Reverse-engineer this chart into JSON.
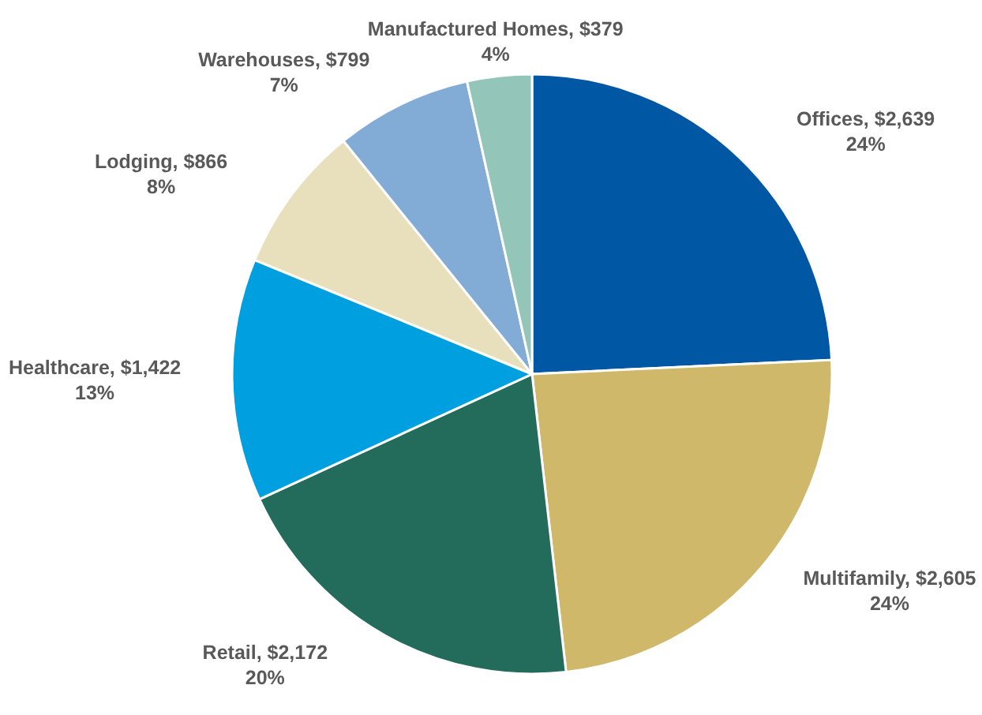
{
  "chart_data": {
    "type": "pie",
    "categories": [
      "Offices",
      "Multifamily",
      "Retail",
      "Healthcare",
      "Lodging",
      "Warehouses",
      "Manufactured Homes"
    ],
    "values": [
      2639,
      2605,
      2172,
      1422,
      866,
      799,
      379
    ],
    "colors": [
      "#0057a3",
      "#cfb86a",
      "#236b5b",
      "#00a0e0",
      "#e8dfbd",
      "#82acd6",
      "#93c6b8"
    ],
    "value_labels": [
      "$2,639\n24%",
      "$2,605\n24%",
      "$2,172\n20%",
      "$1,422\n13%",
      "$866\n8%",
      "$799\n7%",
      "$379\n4%"
    ],
    "data_labels": true
  }
}
